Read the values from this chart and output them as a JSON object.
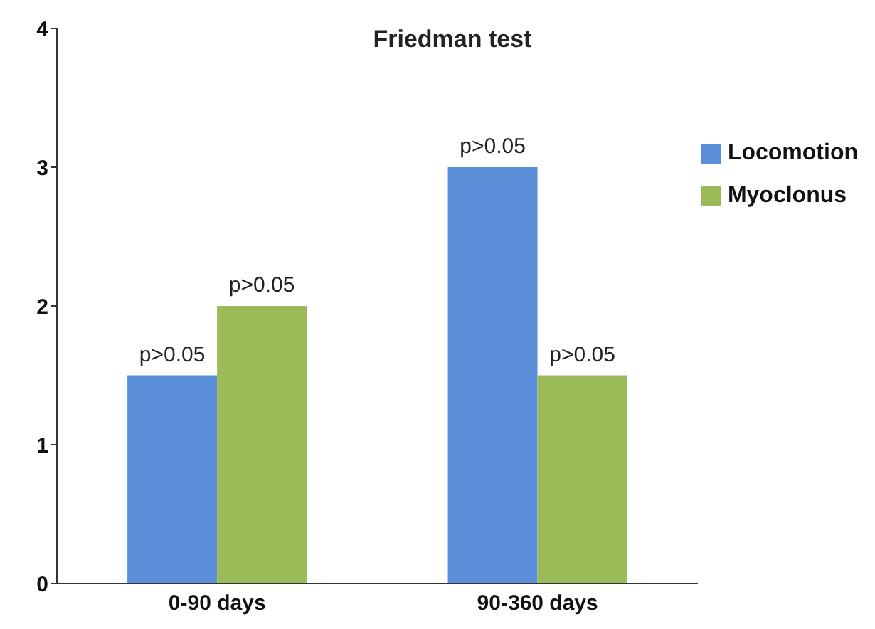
{
  "chart_data": {
    "type": "bar",
    "title": "Friedman test",
    "categories": [
      "0-90 days",
      "90-360 days"
    ],
    "series": [
      {
        "name": "Locomotion",
        "color": "#5b8fd9",
        "values": [
          1.5,
          3
        ],
        "value_labels": [
          "p>0.05",
          "p>0.05"
        ]
      },
      {
        "name": "Myoclonus",
        "color": "#9bbb59",
        "values": [
          2,
          1.5
        ],
        "value_labels": [
          "p>0.05",
          "p>0.05"
        ]
      }
    ],
    "ylim": [
      0,
      4
    ],
    "yticks": [
      0,
      1,
      2,
      3,
      4
    ],
    "grid": false,
    "legend": "top right"
  }
}
